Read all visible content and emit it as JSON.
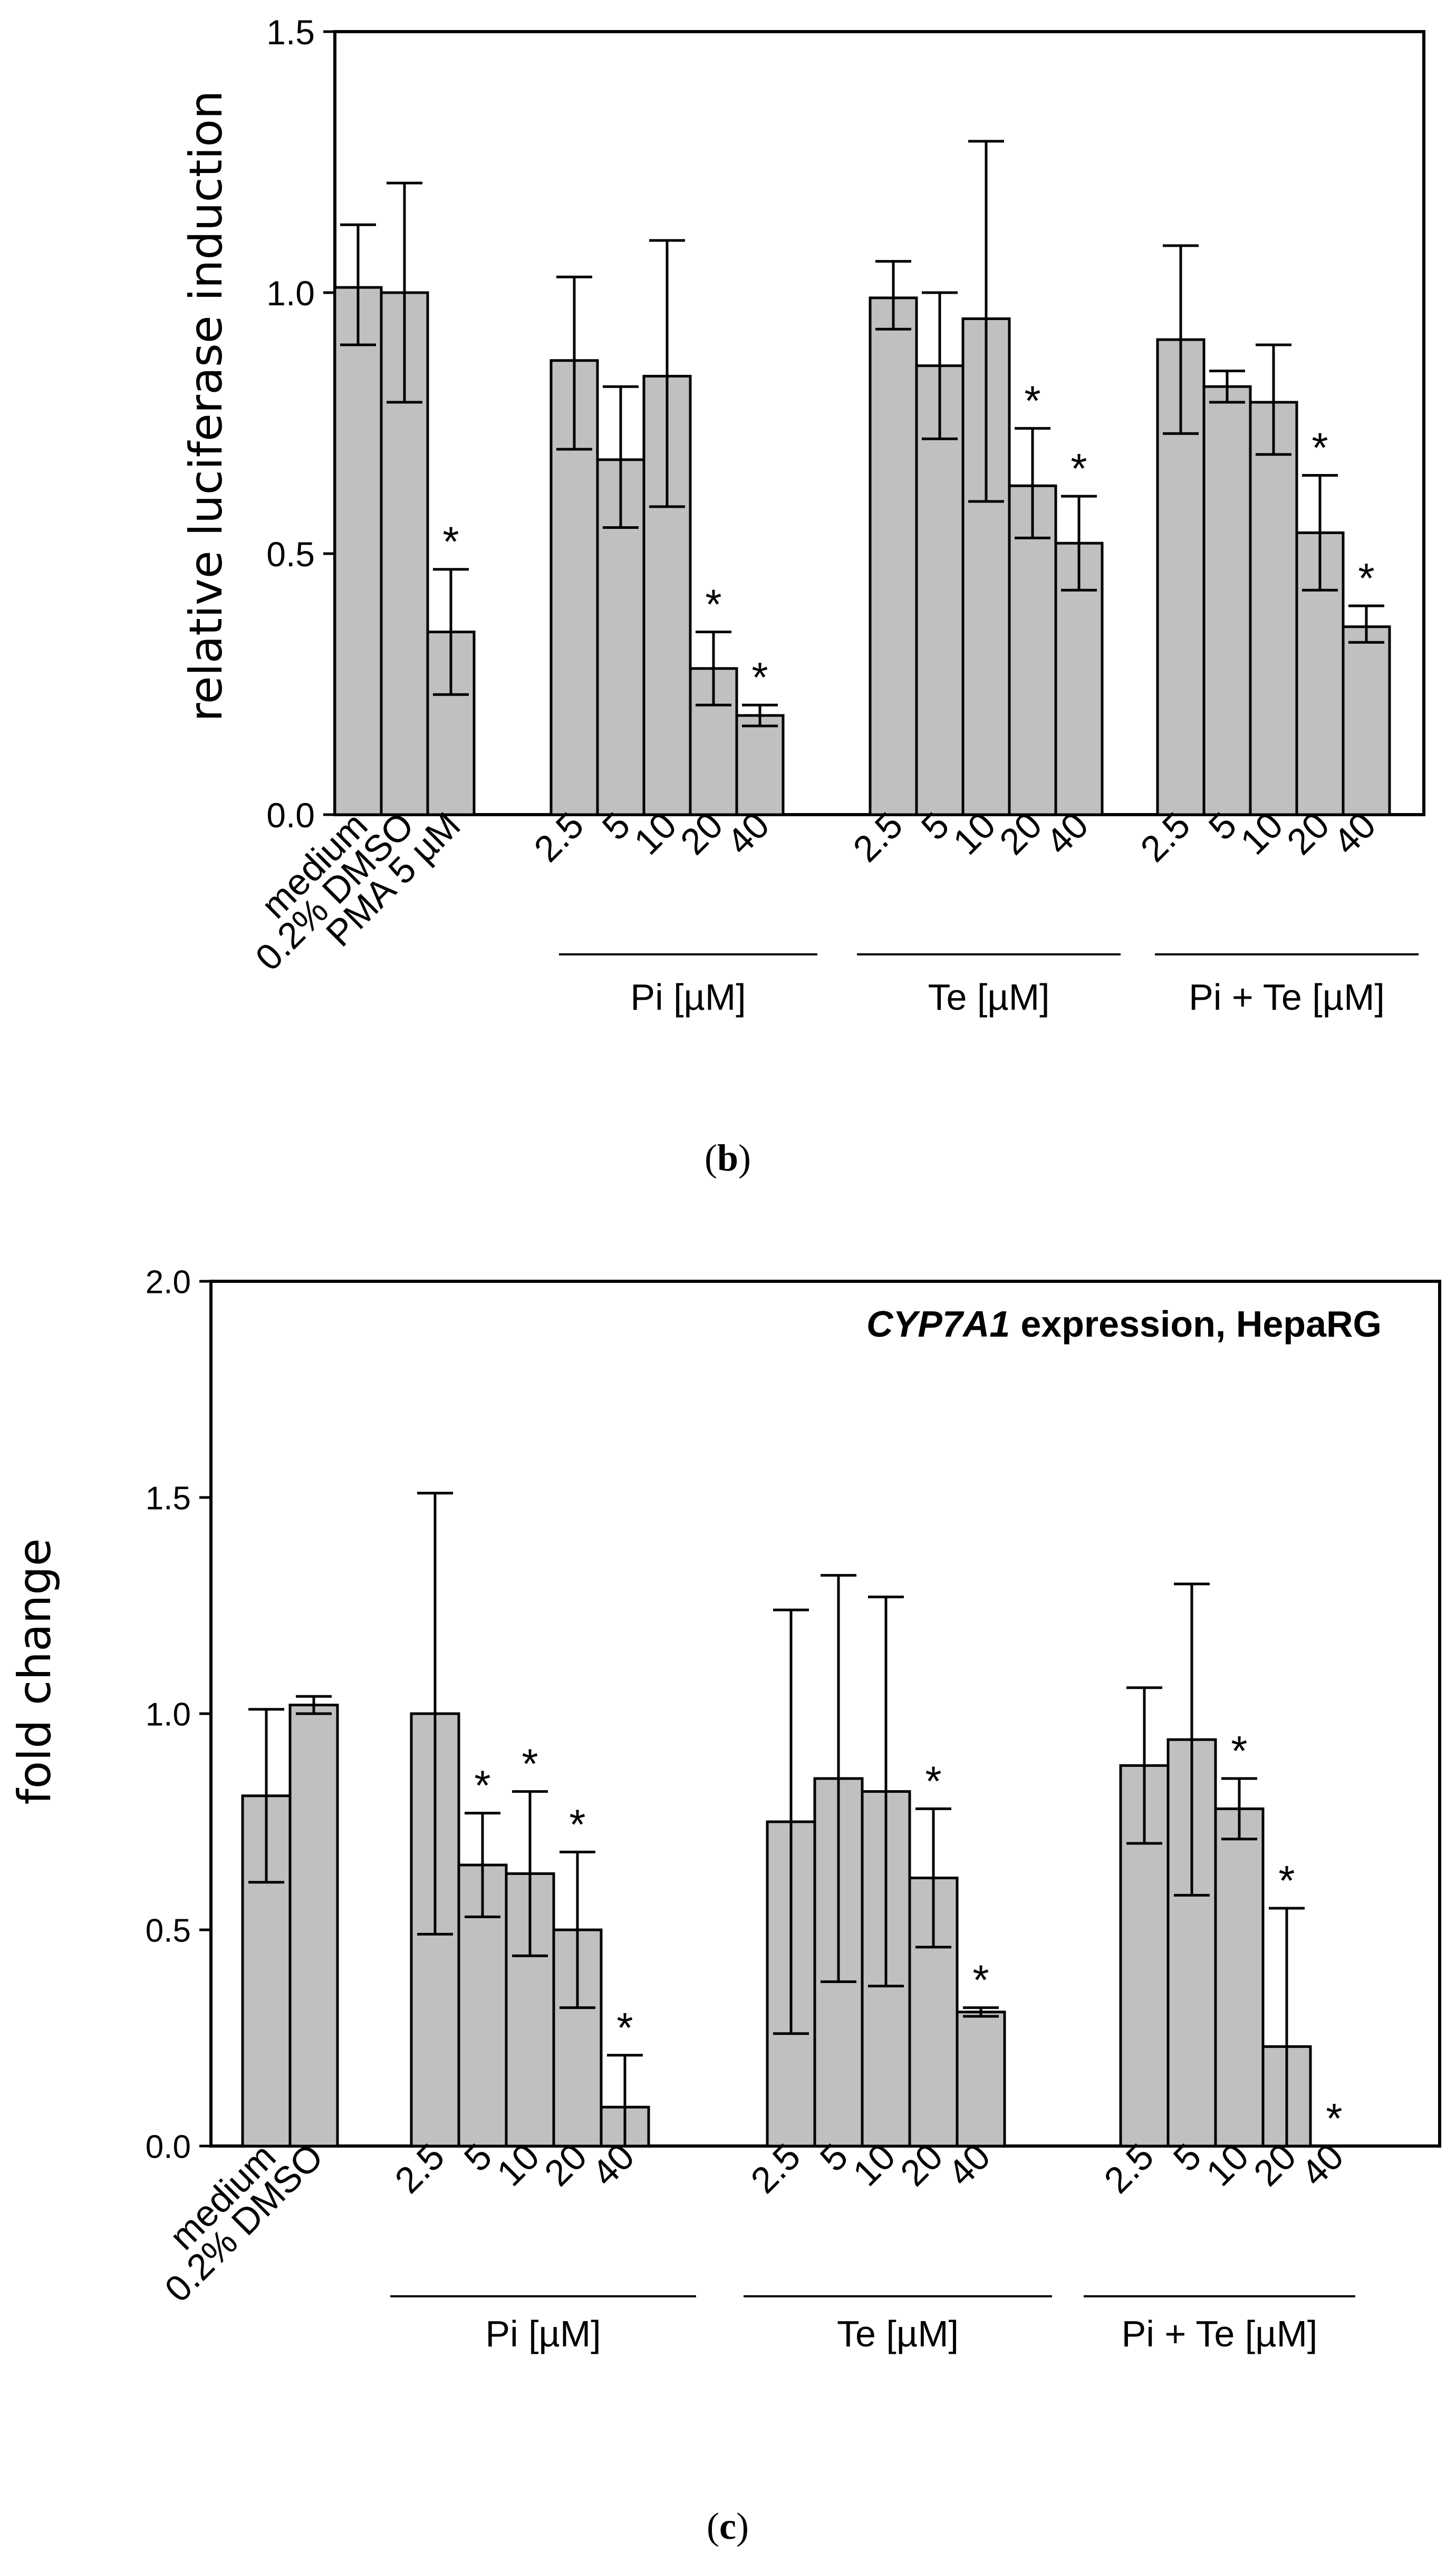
{
  "chart_data": [
    {
      "type": "bar",
      "panel_label": "b",
      "title": "",
      "xlabel": "",
      "ylabel": "relative luciferase induction",
      "ylim": [
        0,
        1.5
      ],
      "yticks": [
        "0.0",
        "0.5",
        "1.0",
        "1.5"
      ],
      "grid": false,
      "legend": "none",
      "bar_color": "#c0c0c0",
      "groups": [
        {
          "label": "",
          "categories": [
            "medium",
            "0.2% DMSO",
            "PMA 5 µM"
          ],
          "values": [
            1.01,
            1.0,
            0.35
          ],
          "err_high": [
            1.13,
            1.21,
            0.47
          ],
          "err_low": [
            0.9,
            0.79,
            0.23
          ],
          "significant": [
            false,
            false,
            true
          ]
        },
        {
          "label": "Pi [µM]",
          "categories": [
            "2.5",
            "5",
            "10",
            "20",
            "40"
          ],
          "values": [
            0.87,
            0.68,
            0.84,
            0.28,
            0.19
          ],
          "err_high": [
            1.03,
            0.82,
            1.1,
            0.35,
            0.21
          ],
          "err_low": [
            0.7,
            0.55,
            0.59,
            0.21,
            0.17
          ],
          "significant": [
            false,
            false,
            false,
            true,
            true
          ]
        },
        {
          "label": "Te [µM]",
          "categories": [
            "2.5",
            "5",
            "10",
            "20",
            "40"
          ],
          "values": [
            0.99,
            0.86,
            0.95,
            0.63,
            0.52
          ],
          "err_high": [
            1.06,
            1.0,
            1.29,
            0.74,
            0.61
          ],
          "err_low": [
            0.93,
            0.72,
            0.6,
            0.53,
            0.43
          ],
          "significant": [
            false,
            false,
            false,
            true,
            true
          ]
        },
        {
          "label": "Pi + Te [µM]",
          "categories": [
            "2.5",
            "5",
            "10",
            "20",
            "40"
          ],
          "values": [
            0.91,
            0.82,
            0.79,
            0.54,
            0.36
          ],
          "err_high": [
            1.09,
            0.85,
            0.9,
            0.65,
            0.4
          ],
          "err_low": [
            0.73,
            0.79,
            0.69,
            0.43,
            0.33
          ],
          "significant": [
            false,
            false,
            false,
            true,
            true
          ]
        }
      ],
      "significance_marker": "*"
    },
    {
      "type": "bar",
      "panel_label": "c",
      "title": "",
      "annotation_gene": "CYP7A1",
      "annotation_rest": "expression,  HepaRG",
      "xlabel": "",
      "ylabel": "fold change",
      "ylim": [
        0,
        2.0
      ],
      "yticks": [
        "0.0",
        "0.5",
        "1.0",
        "1.5",
        "2.0"
      ],
      "grid": false,
      "legend": "none",
      "bar_color": "#c0c0c0",
      "groups": [
        {
          "label": "",
          "categories": [
            "medium",
            "0.2% DMSO"
          ],
          "values": [
            0.81,
            1.02
          ],
          "err_high": [
            1.01,
            1.04
          ],
          "err_low": [
            0.61,
            1.0
          ],
          "significant": [
            false,
            false
          ]
        },
        {
          "label": "Pi [µM]",
          "categories": [
            "2.5",
            "5",
            "10",
            "20",
            "40"
          ],
          "values": [
            1.0,
            0.65,
            0.63,
            0.5,
            0.09
          ],
          "err_high": [
            1.51,
            0.77,
            0.82,
            0.68,
            0.21
          ],
          "err_low": [
            0.49,
            0.53,
            0.44,
            0.32,
            0.0
          ],
          "significant": [
            false,
            true,
            true,
            true,
            true
          ]
        },
        {
          "label": "Te [µM]",
          "categories": [
            "2.5",
            "5",
            "10",
            "20",
            "40"
          ],
          "values": [
            0.75,
            0.85,
            0.82,
            0.62,
            0.31
          ],
          "err_high": [
            1.24,
            1.32,
            1.27,
            0.78,
            0.32
          ],
          "err_low": [
            0.26,
            0.38,
            0.37,
            0.46,
            0.3
          ],
          "significant": [
            false,
            false,
            false,
            true,
            true
          ]
        },
        {
          "label": "Pi + Te [µM]",
          "categories": [
            "2.5",
            "5",
            "10",
            "20",
            "40"
          ],
          "values": [
            0.88,
            0.94,
            0.78,
            0.23,
            0.0
          ],
          "err_high": [
            1.06,
            1.3,
            0.85,
            0.55,
            0.0
          ],
          "err_low": [
            0.7,
            0.58,
            0.71,
            0.0,
            0.0
          ],
          "significant": [
            false,
            false,
            true,
            true,
            true
          ]
        }
      ],
      "significance_marker": "*"
    }
  ]
}
